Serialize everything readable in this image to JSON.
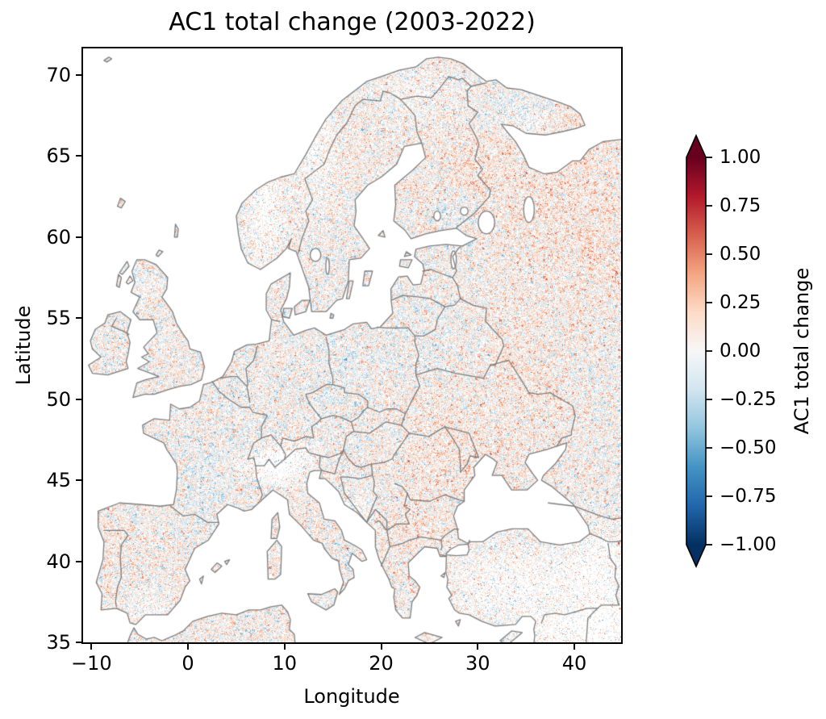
{
  "figure_title": "AC1 total change (2003-2022)",
  "axes": {
    "xlabel": "Longitude",
    "ylabel": "Latitude",
    "xtick_labels": [
      "−10",
      "0",
      "10",
      "20",
      "30",
      "40"
    ],
    "xtick_values": [
      -10,
      0,
      10,
      20,
      30,
      40
    ],
    "ytick_labels": [
      "35",
      "40",
      "45",
      "50",
      "55",
      "60",
      "65",
      "70"
    ],
    "ytick_values": [
      35,
      40,
      45,
      50,
      55,
      60,
      65,
      70
    ],
    "xlim": [
      -10.86,
      44.84
    ],
    "ylim": [
      35,
      71.64
    ]
  },
  "colorbar": {
    "label": "AC1 total change",
    "tick_labels": [
      "1.00",
      "0.75",
      "0.50",
      "0.25",
      "0.00",
      "−0.25",
      "−0.50",
      "−0.75",
      "−1.00"
    ],
    "tick_values": [
      1,
      0.75,
      0.5,
      0.25,
      0,
      -0.25,
      -0.5,
      -0.75,
      -1
    ],
    "vmin": -1,
    "vmax": 1,
    "colormap": "RdBu_r",
    "extend": "both",
    "colors_top_to_bottom": [
      "#67001f",
      "#b2182b",
      "#d6604d",
      "#f4a582",
      "#fddbc7",
      "#f7f7f7",
      "#d1e5f0",
      "#92c5de",
      "#4393c3",
      "#2166ac",
      "#053061"
    ]
  },
  "chart_data": {
    "type": "heatmap",
    "title": "AC1 total change (2003-2022)",
    "xlabel": "Longitude",
    "ylabel": "Latitude",
    "xlim": [
      -10.9,
      44.8
    ],
    "ylim": [
      35,
      71.6
    ],
    "xticks": [
      -10,
      0,
      10,
      20,
      30,
      40
    ],
    "yticks": [
      35,
      40,
      45,
      50,
      55,
      60,
      65,
      70
    ],
    "grid": false,
    "legend": "none",
    "colorbar": {
      "label": "AC1 total change",
      "range": [
        -1,
        1
      ],
      "ticks": [
        -1,
        -0.75,
        -0.5,
        -0.25,
        0,
        0.25,
        0.5,
        0.75,
        1
      ],
      "colormap": "RdBu_r",
      "extend": "both",
      "position": "right"
    },
    "map_region": "Europe with national borders drawn in gray; ocean and seas in white",
    "value_summary": "Fine-grained per-pixel AC1 change values over land, mostly between −0.3 and +0.3; weak positive (pale red) tendency over western Russia, eastern Finland, Romania/Ukraine and the Balkans; weak negative (pale blue) tendency over central Europe, the Baltic states, southwestern France and the Kola Peninsula; white no-data gaps over the Scandinavian mountains, the Alps, southern Spain and central/eastern Turkey"
  }
}
